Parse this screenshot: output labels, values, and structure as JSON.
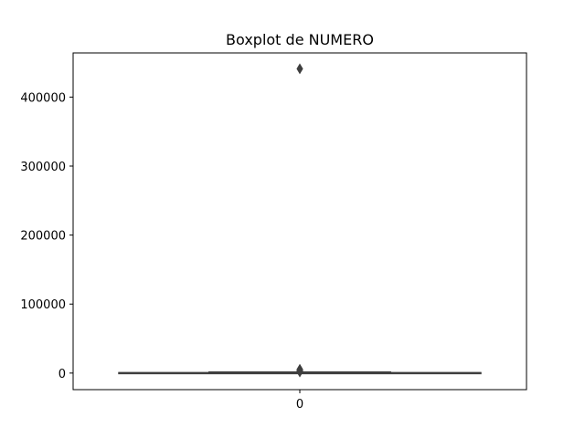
{
  "chart_data": {
    "type": "boxplot",
    "title": "Boxplot de NUMERO",
    "xlabel": "",
    "ylabel": "",
    "categories": [
      "0"
    ],
    "ylim": [
      -24000,
      464000
    ],
    "yticks": [
      0,
      100000,
      200000,
      300000,
      400000
    ],
    "ytick_labels": [
      "0",
      "100000",
      "200000",
      "300000",
      "400000"
    ],
    "box": {
      "whisker_low": 0,
      "q1": 100,
      "median": 300,
      "q3": 600,
      "whisker_high": 1400
    },
    "outliers": [
      441000,
      5500,
      4800,
      4200,
      3600,
      3100,
      2600,
      2200,
      1900,
      1700
    ],
    "colors": {
      "box_line": "#3f3f3f",
      "outlier": "#3f3f3f",
      "axes": "#000000"
    },
    "grid": false
  }
}
